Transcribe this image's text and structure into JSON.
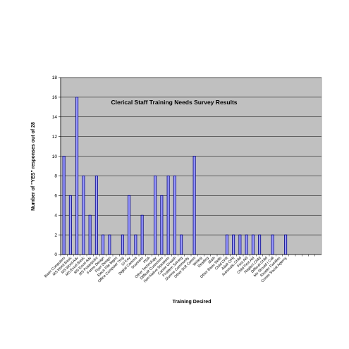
{
  "chart_data": {
    "type": "bar",
    "title": "Clerical Staff Training Needs Survey Results",
    "xlabel": "Training Desired",
    "ylabel": "Number of \"YES\" responses out of 28",
    "ylim": [
      0,
      18
    ],
    "yticks": [
      0,
      2,
      4,
      6,
      8,
      10,
      12,
      14,
      16,
      18
    ],
    "grid": true,
    "legend": "none",
    "colors": {
      "plot_bg": "#c0c0c0",
      "bar_fill": "#9999ff",
      "bar_edge": "#000080",
      "grid": "#000000"
    },
    "categories": [
      "Basic Computers",
      "MS Word Basic",
      "MS Word Adv",
      "MS Excel Basic",
      "MS Excel Adv",
      "MS Powerpoint",
      "Forms Design",
      "Flyer Design",
      "Electr File Mgmt",
      "Office Computer Trng",
      "10 Key",
      "Digital Camera",
      "Scanners",
      "PDA",
      "Other Technology",
      "Difficult Customers",
      "Non-Native Speakers",
      "Career Growth",
      "Problem Solving",
      "Diverse Community",
      "Other Soft Comm",
      "Writing",
      "Reading",
      "Math",
      "Other Basic Skills",
      "Child CPR",
      "Adult CPR",
      "Automatic Child",
      "First Aid",
      "Child First Aid",
      "Neglect Child",
      "Difficult Child",
      "Mo Should I Call",
      "Reader Families",
      "Comm Social Agency",
      "",
      "",
      "",
      "",
      ""
    ],
    "values": [
      10,
      6,
      16,
      8,
      4,
      8,
      2,
      2,
      0,
      2,
      6,
      2,
      4,
      0,
      8,
      6,
      8,
      8,
      2,
      0,
      10,
      0,
      0,
      0,
      0,
      2,
      2,
      2,
      2,
      2,
      2,
      0,
      2,
      0,
      2,
      0,
      0,
      0,
      0,
      0
    ]
  }
}
